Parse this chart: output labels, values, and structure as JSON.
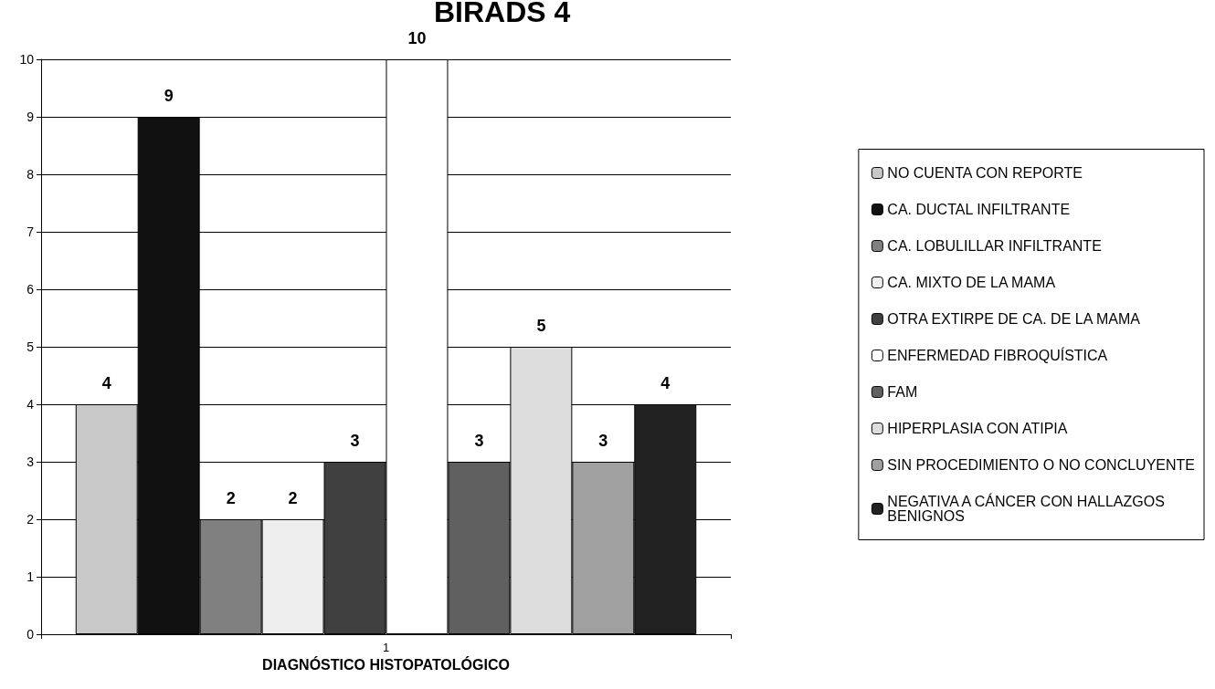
{
  "chart_data": {
    "type": "bar",
    "title": "BIRADS 4",
    "xlabel": "DIAGNÓSTICO HISTOPATOLÓGICO",
    "categories": [
      "1"
    ],
    "series": [
      {
        "name": "NO CUENTA CON REPORTE",
        "color": "#c8c8c8",
        "values": [
          4
        ]
      },
      {
        "name": "CA. DUCTAL INFILTRANTE",
        "color": "#111111",
        "values": [
          9
        ]
      },
      {
        "name": "CA. LOBULILLAR INFILTRANTE",
        "color": "#808080",
        "values": [
          2
        ]
      },
      {
        "name": "CA. MIXTO DE LA MAMA",
        "color": "#eeeeee",
        "values": [
          2
        ]
      },
      {
        "name": "OTRA EXTIRPE DE CA. DE LA MAMA",
        "color": "#404040",
        "values": [
          3
        ]
      },
      {
        "name": "ENFERMEDAD FIBROQUÍSTICA",
        "color": "#ffffff",
        "values": [
          10
        ]
      },
      {
        "name": "FAM",
        "color": "#606060",
        "values": [
          3
        ]
      },
      {
        "name": "HIPERPLASIA CON ATIPIA",
        "color": "#dddddd",
        "values": [
          5
        ]
      },
      {
        "name": "SIN PROCEDIMIENTO O NO CONCLUYENTE",
        "color": "#a0a0a0",
        "values": [
          3
        ]
      },
      {
        "name": "NEGATIVA A CÁNCER CON HALLAZGOS BENIGNOS",
        "color": "#222222",
        "values": [
          4
        ]
      }
    ],
    "ylim": [
      0,
      10
    ],
    "yticks": [
      0,
      1,
      2,
      3,
      4,
      5,
      6,
      7,
      8,
      9,
      10
    ],
    "grid": "y",
    "legend": "right",
    "data_labels": true
  }
}
